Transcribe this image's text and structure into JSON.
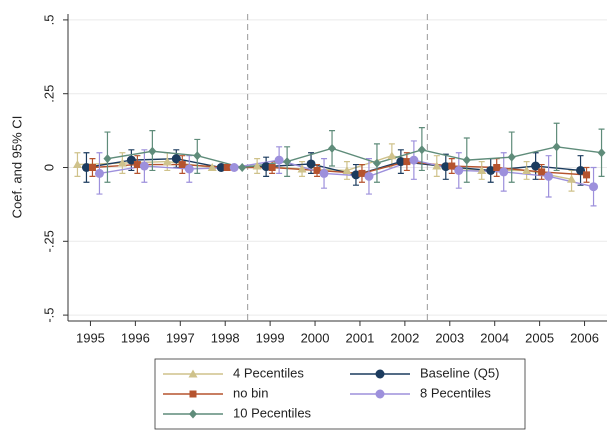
{
  "chart_data": {
    "type": "errorbar-line",
    "y_label": "Coef. and 95% CI",
    "xlim": [
      1994.5,
      2006.5
    ],
    "xticks": [
      1995,
      1996,
      1997,
      1998,
      1999,
      2000,
      2001,
      2002,
      2003,
      2004,
      2005,
      2006
    ],
    "ylim": [
      -0.52,
      0.52
    ],
    "yticks": [
      {
        "value": -0.5,
        "label": "-.5"
      },
      {
        "value": -0.25,
        "label": "-.25"
      },
      0,
      {
        "value": 0.25,
        "label": ".25"
      },
      {
        "value": 0.5,
        "label": ".5"
      }
    ],
    "grid": true,
    "xlines": [
      1998.5,
      2002.5
    ],
    "series": [
      {
        "name": "4 Pecentiles",
        "color": "#cfc28b",
        "marker": "triangle",
        "x": [
          1995,
          1996,
          1997,
          1998,
          1999,
          2000,
          2001,
          2002,
          2003,
          2004,
          2005,
          2006
        ],
        "values": [
          0.01,
          0.015,
          0.02,
          0,
          0.005,
          -0.005,
          -0.01,
          0.04,
          0.005,
          -0.01,
          -0.01,
          -0.04
        ],
        "ci_low": [
          -0.03,
          -0.02,
          -0.01,
          null,
          -0.02,
          -0.03,
          -0.04,
          0,
          -0.03,
          -0.04,
          -0.04,
          -0.08
        ],
        "ci_high": [
          0.05,
          0.05,
          0.05,
          null,
          0.03,
          0.02,
          0.02,
          0.08,
          0.04,
          0.02,
          0.02,
          -0.01
        ]
      },
      {
        "name": "Baseline (Q5)",
        "color": "#1b3b5e",
        "marker": "circle",
        "x": [
          1995,
          1996,
          1997,
          1998,
          1999,
          2000,
          2001,
          2002,
          2003,
          2004,
          2005,
          2006
        ],
        "values": [
          0,
          0.025,
          0.03,
          0,
          0.003,
          0.012,
          -0.025,
          0.02,
          0.003,
          -0.01,
          0.005,
          -0.01
        ],
        "ci_low": [
          -0.05,
          -0.01,
          0,
          null,
          -0.03,
          -0.02,
          -0.06,
          -0.02,
          -0.04,
          -0.05,
          -0.04,
          -0.06
        ],
        "ci_high": [
          0.05,
          0.06,
          0.06,
          null,
          0.035,
          0.05,
          0.01,
          0.06,
          0.045,
          0.03,
          0.05,
          0.04
        ]
      },
      {
        "name": "no bin",
        "color": "#b5532e",
        "marker": "square",
        "x": [
          1995,
          1996,
          1997,
          1998,
          1999,
          2000,
          2001,
          2002,
          2003,
          2004,
          2005,
          2006
        ],
        "values": [
          0,
          0.01,
          0.01,
          0,
          0,
          -0.01,
          -0.02,
          0.02,
          0.005,
          0,
          -0.015,
          -0.025
        ],
        "ci_low": [
          -0.03,
          -0.02,
          -0.02,
          null,
          -0.02,
          -0.03,
          -0.05,
          -0.01,
          -0.02,
          -0.03,
          -0.04,
          -0.05
        ],
        "ci_high": [
          0.03,
          0.04,
          0.04,
          null,
          0.02,
          0.01,
          0.01,
          0.05,
          0.03,
          0.03,
          0.01,
          0
        ]
      },
      {
        "name": "8 Pecentiles",
        "color": "#9d90dc",
        "marker": "circle",
        "x": [
          1995,
          1996,
          1997,
          1998,
          1999,
          2000,
          2001,
          2002,
          2003,
          2004,
          2005,
          2006
        ],
        "values": [
          -0.02,
          0.005,
          -0.005,
          0,
          0.025,
          -0.02,
          -0.03,
          0.025,
          -0.01,
          -0.015,
          -0.03,
          -0.065
        ],
        "ci_low": [
          -0.09,
          -0.05,
          -0.05,
          null,
          -0.02,
          -0.07,
          -0.09,
          -0.04,
          -0.07,
          -0.08,
          -0.1,
          -0.13
        ],
        "ci_high": [
          0.05,
          0.06,
          0.04,
          null,
          0.07,
          0.03,
          0.03,
          0.09,
          0.05,
          0.05,
          0.04,
          0
        ]
      },
      {
        "name": "10 Pecentiles",
        "color": "#5f8c7a",
        "marker": "diamond",
        "x": [
          1995,
          1996,
          1997,
          1998,
          1999,
          2000,
          2001,
          2002,
          2003,
          2004,
          2005,
          2006
        ],
        "values": [
          0.03,
          0.055,
          0.04,
          0,
          0.02,
          0.065,
          0.015,
          0.06,
          0.025,
          0.035,
          0.07,
          0.05
        ],
        "ci_low": [
          -0.05,
          -0.01,
          -0.02,
          null,
          -0.03,
          0.005,
          -0.05,
          -0.01,
          -0.05,
          -0.05,
          -0.01,
          -0.03
        ],
        "ci_high": [
          0.12,
          0.125,
          0.095,
          null,
          0.07,
          0.125,
          0.08,
          0.135,
          0.1,
          0.12,
          0.15,
          0.13
        ]
      }
    ]
  }
}
